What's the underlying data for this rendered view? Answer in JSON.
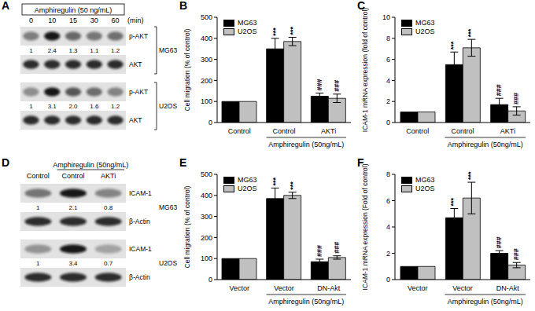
{
  "chart_data": [
    {
      "type": "bar",
      "title": "B",
      "categories": [
        "Control",
        "Control",
        "AKTi"
      ],
      "x_group": {
        "label": "Amphiregulin (50ng/mL)",
        "from": 1,
        "to": 2
      },
      "y_label": "Cell migration (% of control)",
      "ylim": [
        0,
        500
      ],
      "yticks": [
        0,
        100,
        200,
        300,
        400,
        500
      ],
      "legend": "upper left",
      "series": [
        {
          "name": "MG63",
          "color": "#000000",
          "values": [
            100,
            350,
            125
          ],
          "errors": [
            null,
            50,
            15
          ],
          "annotations": [
            null,
            "***",
            "###"
          ]
        },
        {
          "name": "U2OS",
          "color": "#c0c0c0",
          "values": [
            100,
            385,
            115
          ],
          "errors": [
            null,
            20,
            20
          ],
          "annotations": [
            null,
            "***",
            "###"
          ]
        }
      ]
    },
    {
      "type": "bar",
      "title": "C",
      "categories": [
        "Control",
        "Control",
        "AKTi"
      ],
      "x_group": {
        "label": "Amphiregulin (50ng/mL)",
        "from": 1,
        "to": 2
      },
      "y_label": "ICAM-1 mRNA expression (fold of control)",
      "ylim": [
        0,
        10
      ],
      "yticks": [
        0,
        2,
        4,
        6,
        8,
        10
      ],
      "legend": "upper left",
      "series": [
        {
          "name": "MG63",
          "color": "#000000",
          "values": [
            1,
            5.5,
            1.7
          ],
          "errors": [
            null,
            1.2,
            0.6
          ],
          "annotations": [
            null,
            "***",
            "###"
          ]
        },
        {
          "name": "U2OS",
          "color": "#c0c0c0",
          "values": [
            1,
            7.1,
            1.1
          ],
          "errors": [
            null,
            0.8,
            0.4
          ],
          "annotations": [
            null,
            "***",
            "###"
          ]
        }
      ]
    },
    {
      "type": "bar",
      "title": "E",
      "categories": [
        "Vector",
        "Vector",
        "DN-Akt"
      ],
      "x_group": {
        "label": "Amphiregulin (50ng/mL)",
        "from": 1,
        "to": 2
      },
      "y_label": "Cell migration (% of control)",
      "ylim": [
        0,
        500
      ],
      "yticks": [
        0,
        100,
        200,
        300,
        400,
        500
      ],
      "legend": "upper left",
      "series": [
        {
          "name": "MG63",
          "color": "#000000",
          "values": [
            100,
            385,
            85
          ],
          "errors": [
            null,
            50,
            12
          ],
          "annotations": [
            null,
            "***",
            "###"
          ]
        },
        {
          "name": "U2OS",
          "color": "#c0c0c0",
          "values": [
            100,
            400,
            105
          ],
          "errors": [
            null,
            15,
            8
          ],
          "annotations": [
            null,
            "***",
            "###"
          ]
        }
      ]
    },
    {
      "type": "bar",
      "title": "F",
      "categories": [
        "Vector",
        "Vector",
        "DN-Akt"
      ],
      "x_group": {
        "label": "Amphiregulin (50ng/mL)",
        "from": 1,
        "to": 2
      },
      "y_label": "ICAM-1 mRNA expression (Fold of control)",
      "ylim": [
        0,
        8
      ],
      "yticks": [
        0,
        2,
        4,
        6,
        8
      ],
      "legend": "upper left",
      "series": [
        {
          "name": "MG63",
          "color": "#000000",
          "values": [
            1,
            4.7,
            2.0
          ],
          "errors": [
            null,
            0.7,
            0.2
          ],
          "annotations": [
            null,
            "***",
            "###"
          ]
        },
        {
          "name": "U2OS",
          "color": "#c0c0c0",
          "values": [
            1,
            6.2,
            1.1
          ],
          "errors": [
            null,
            1.2,
            0.2
          ],
          "annotations": [
            null,
            "***",
            "###"
          ]
        }
      ]
    }
  ],
  "blots": [
    {
      "title": "A",
      "treatment": {
        "label": "Amphiregulin (50 ng/mL)",
        "from": 0,
        "to": 4
      },
      "lanes": [
        0,
        10,
        15,
        30,
        60
      ],
      "lane_unit": "(min)",
      "groups": [
        {
          "cell": "MG63",
          "rows": [
            {
              "label": "p-AKT",
              "values": [
                1,
                2.4,
                1.3,
                1.1,
                1.2
              ]
            },
            {
              "label": "AKT"
            }
          ]
        },
        {
          "cell": "U2OS",
          "rows": [
            {
              "label": "p-AKT",
              "values": [
                1,
                3.1,
                2.0,
                1.6,
                1.2
              ],
              "value_labels": [
                "1",
                "3.1",
                "2.0",
                "1.6",
                "1.2"
              ]
            },
            {
              "label": "AKT"
            }
          ]
        }
      ]
    },
    {
      "title": "D",
      "treatment": {
        "label": "Amphiregulin (50ng/mL)",
        "from": 1,
        "to": 2
      },
      "lanes": [
        "Control",
        "Control",
        "AKTi"
      ],
      "groups": [
        {
          "cell": "MG63",
          "rows": [
            {
              "label": "ICAM-1",
              "values": [
                1,
                2.1,
                0.8
              ]
            },
            {
              "label": "β-Actin"
            }
          ]
        },
        {
          "cell": "U2OS",
          "rows": [
            {
              "label": "ICAM-1",
              "values": [
                1,
                3.4,
                0.7
              ]
            },
            {
              "label": "β-Actin"
            }
          ]
        }
      ]
    }
  ]
}
